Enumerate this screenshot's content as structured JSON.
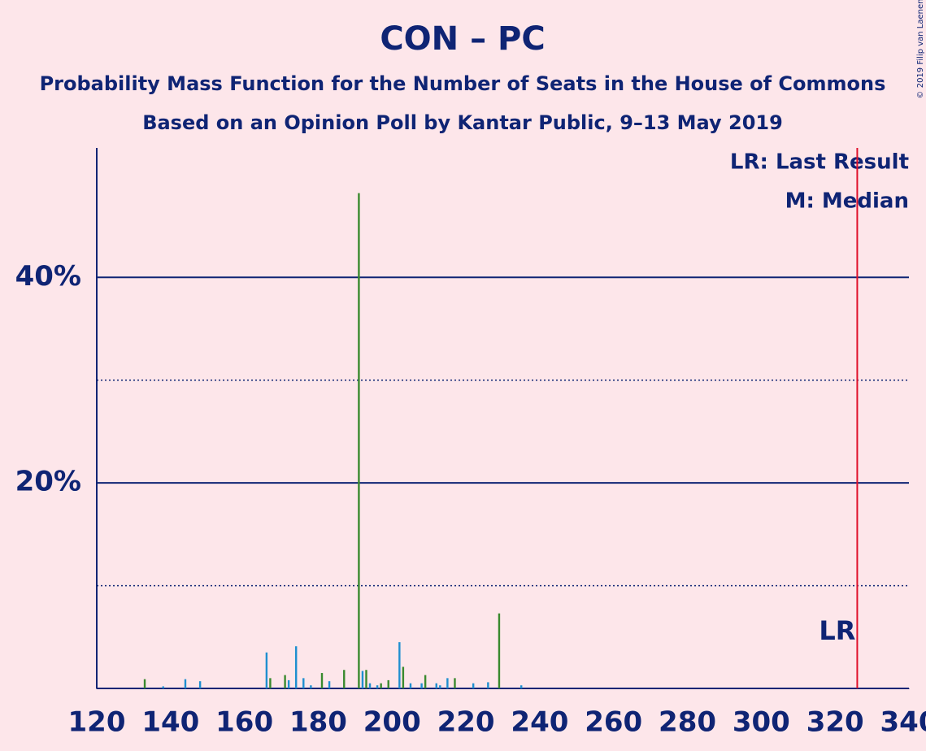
{
  "chart_data": {
    "type": "bar",
    "title": "CON – PC",
    "subtitle": "Probability Mass Function for the Number of Seats in the House of Commons",
    "subtitle2": "Based on an Opinion Poll by Kantar Public, 9–13 May 2019",
    "copyright": "© 2019 Filip van Laenen",
    "legend_lr": "LR: Last Result",
    "legend_m": "M: Median",
    "last_result_label": "LR",
    "last_result": 326,
    "x": [
      133,
      138,
      144,
      148,
      166,
      167,
      171,
      172,
      174,
      176,
      178,
      181,
      183,
      187,
      191,
      192,
      193,
      194,
      196,
      197,
      199,
      202,
      203,
      205,
      208,
      209,
      212,
      213,
      215,
      217,
      222,
      226,
      229,
      235
    ],
    "values": [
      0.9,
      0.2,
      0.9,
      0.7,
      3.5,
      1.0,
      1.3,
      0.8,
      4.1,
      1.0,
      0.3,
      1.5,
      0.7,
      1.8,
      48.2,
      1.7,
      1.8,
      0.5,
      0.3,
      0.5,
      0.8,
      4.5,
      2.1,
      0.5,
      0.5,
      1.3,
      0.5,
      0.3,
      1.0,
      1.0,
      0.5,
      0.6,
      7.3,
      0.3
    ],
    "colors": [
      "#3a8a2e",
      "#1f8fd0",
      "#1f8fd0",
      "#1f8fd0",
      "#1f8fd0",
      "#3a8a2e",
      "#3a8a2e",
      "#1f8fd0",
      "#1f8fd0",
      "#1f8fd0",
      "#1f8fd0",
      "#3a8a2e",
      "#1f8fd0",
      "#3a8a2e",
      "#3a8a2e",
      "#1f8fd0",
      "#3a8a2e",
      "#1f8fd0",
      "#1f8fd0",
      "#3a8a2e",
      "#3a8a2e",
      "#1f8fd0",
      "#3a8a2e",
      "#1f8fd0",
      "#1f8fd0",
      "#3a8a2e",
      "#1f8fd0",
      "#1f8fd0",
      "#1f8fd0",
      "#3a8a2e",
      "#1f8fd0",
      "#1f8fd0",
      "#3a8a2e",
      "#1f8fd0"
    ],
    "xlim": [
      120,
      340
    ],
    "xticks": [
      120,
      140,
      160,
      180,
      200,
      220,
      240,
      260,
      280,
      300,
      320,
      340
    ],
    "ylim": [
      0,
      52.6
    ],
    "yticks": [
      {
        "value": 20,
        "label": "20%"
      },
      {
        "value": 40,
        "label": "40%"
      }
    ],
    "minor_gridlines": [
      10,
      30
    ],
    "grid": true
  }
}
